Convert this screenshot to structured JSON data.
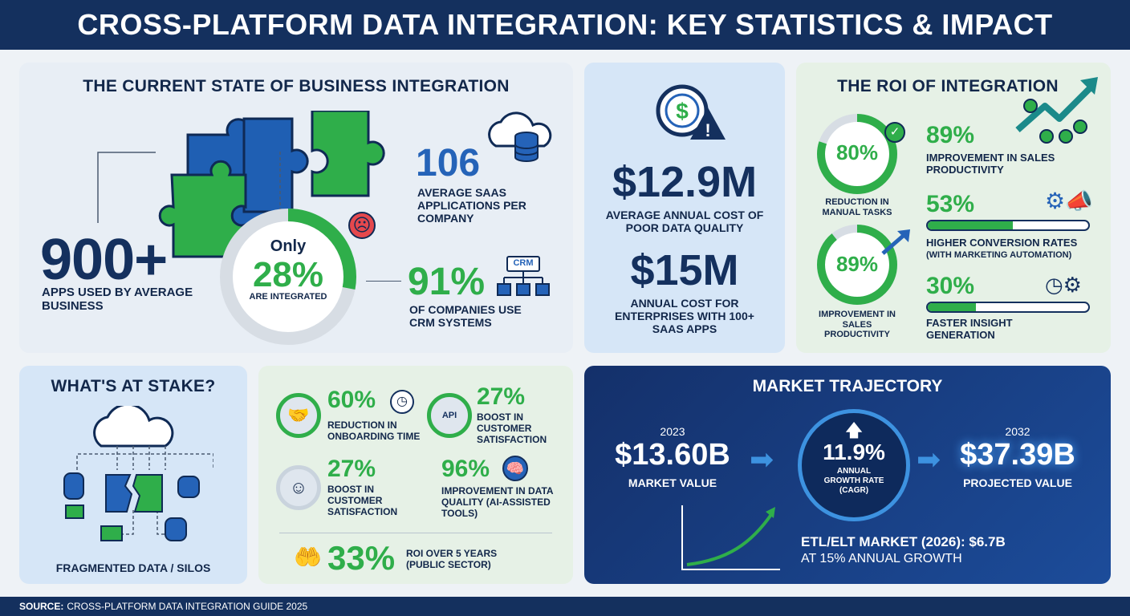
{
  "header": {
    "title": "CROSS-PLATFORM DATA INTEGRATION: KEY STATISTICS & IMPACT"
  },
  "current_state": {
    "title": "THE CURRENT STATE OF BUSINESS INTEGRATION",
    "apps_value": "900+",
    "apps_caption": "APPS USED BY AVERAGE BUSINESS",
    "only_label": "Only",
    "integrated_value": "28%",
    "integrated_fraction": 0.28,
    "integrated_caption": "ARE INTEGRATED",
    "saas_value": "106",
    "saas_caption": "AVERAGE SAAS APPLICATIONS PER COMPANY",
    "crm_value": "91%",
    "crm_caption": "OF COMPANIES USE CRM SYSTEMS",
    "crm_icon_label": "CRM",
    "icons": [
      "puzzle-icon",
      "cloud-database-icon",
      "sad-face-icon",
      "crm-hierarchy-icon"
    ]
  },
  "cost": {
    "cost1_value": "$12.9M",
    "cost1_caption": "AVERAGE ANNUAL COST OF POOR DATA QUALITY",
    "cost2_value": "$15M",
    "cost2_caption": "ANNUAL COST FOR ENTERPRISES WITH 100+ SAAS APPS",
    "icon": "dollar-warning-icon"
  },
  "roi": {
    "title": "THE ROI OF INTEGRATION",
    "ring1_value": "80%",
    "ring1_fraction": 0.8,
    "ring1_caption": "REDUCTION IN MANUAL TASKS",
    "ring2_value": "89%",
    "ring2_fraction": 0.89,
    "ring2_caption": "IMPROVEMENT IN SALES PRODUCTIVITY",
    "stat1_value": "89%",
    "stat1_caption": "IMPROVEMENT IN SALES PRODUCTIVITY",
    "stat2_value": "53%",
    "stat2_fraction": 0.53,
    "stat2_caption": "HIGHER CONVERSION RATES",
    "stat2_sub": "(WITH MARKETING AUTOMATION)",
    "stat3_value": "30%",
    "stat3_fraction": 0.3,
    "stat3_caption": "FASTER INSIGHT GENERATION",
    "icons": [
      "growth-arrow-icon",
      "check-icon",
      "gears-megaphone-icon",
      "clock-gear-icon"
    ]
  },
  "stake": {
    "title": "WHAT'S AT STAKE?",
    "caption": "FRAGMENTED DATA / SILOS",
    "icon": "fragmented-data-icon"
  },
  "benefits": {
    "items": [
      {
        "value": "60%",
        "caption": "REDUCTION IN ONBOARDING TIME",
        "icon": "handshake-icon"
      },
      {
        "value": "27%",
        "caption": "BOOST IN CUSTOMER SATISFACTION",
        "icon": "api-gear-icon",
        "icon_label": "API"
      },
      {
        "value": "27%",
        "caption": "BOOST IN CUSTOMER SATISFACTION",
        "icon": "smiley-icon"
      },
      {
        "value": "96%",
        "caption": "IMPROVEMENT IN DATA QUALITY (AI-ASSISTED TOOLS)",
        "icon": "brain-icon"
      }
    ],
    "roi_value": "33%",
    "roi_caption": "ROI OVER 5 YEARS (PUBLIC SECTOR)",
    "roi_icon": "money-hand-icon"
  },
  "market": {
    "title": "MARKET TRAJECTORY",
    "year_start": "2023",
    "value_start": "$13.60B",
    "caption_start": "MARKET VALUE",
    "cagr_value": "11.9%",
    "cagr_caption": "ANNUAL GROWTH RATE (CAGR)",
    "year_end": "2032",
    "value_end": "$37.39B",
    "caption_end": "PROJECTED VALUE",
    "etl_line": "ETL/ELT MARKET (2026): $6.7B",
    "etl_sub": "AT 15% ANNUAL GROWTH"
  },
  "footer": {
    "source_label": "SOURCE:",
    "source_text": "CROSS-PLATFORM DATA INTEGRATION GUIDE 2025"
  },
  "colors": {
    "navy": "#14305e",
    "green": "#2fae4a",
    "blue": "#2563b8",
    "market_bg": "#163f86"
  }
}
